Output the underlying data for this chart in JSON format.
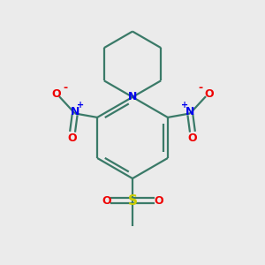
{
  "background_color": "#ebebeb",
  "bond_color": "#3a7a68",
  "N_color": "#0000ee",
  "O_color": "#ee0000",
  "S_color": "#cccc00",
  "figsize": [
    3.0,
    3.0
  ],
  "dpi": 100,
  "xlim": [
    0,
    10
  ],
  "ylim": [
    0,
    10
  ]
}
